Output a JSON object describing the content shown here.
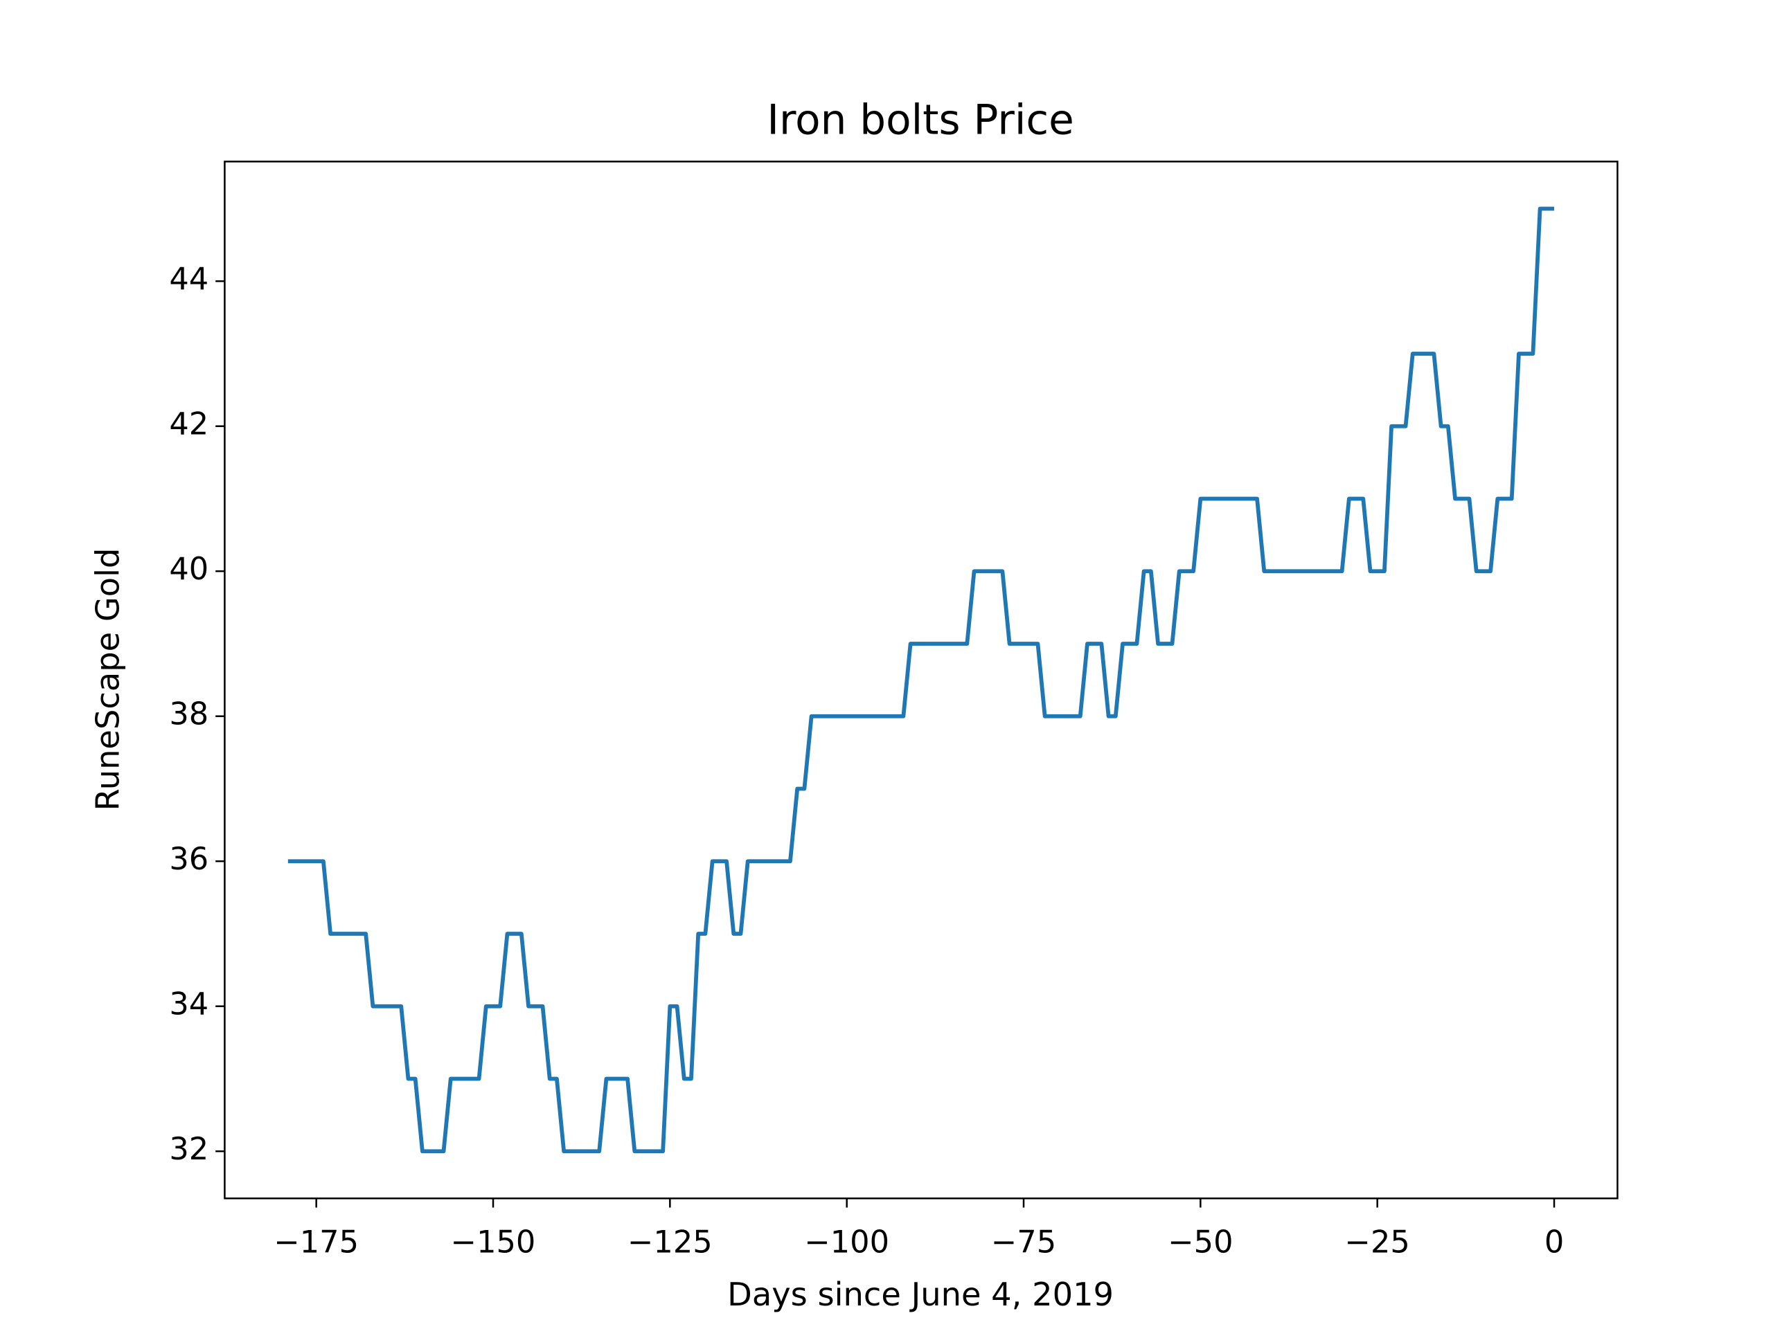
{
  "chart_data": {
    "type": "line",
    "title": "Iron bolts Price",
    "x_label": "Days since June 4, 2019",
    "y_label": "RuneScape Gold",
    "x": [
      -179,
      -178,
      -177,
      -176,
      -175,
      -174,
      -173,
      -172,
      -171,
      -170,
      -169,
      -168,
      -167,
      -166,
      -165,
      -164,
      -163,
      -162,
      -161,
      -160,
      -159,
      -158,
      -157,
      -156,
      -155,
      -154,
      -153,
      -152,
      -151,
      -150,
      -149,
      -148,
      -147,
      -146,
      -145,
      -144,
      -143,
      -142,
      -141,
      -140,
      -139,
      -138,
      -137,
      -136,
      -135,
      -134,
      -133,
      -132,
      -131,
      -130,
      -129,
      -128,
      -127,
      -126,
      -125,
      -124,
      -123,
      -122,
      -121,
      -120,
      -119,
      -118,
      -117,
      -116,
      -115,
      -114,
      -113,
      -112,
      -111,
      -110,
      -109,
      -108,
      -107,
      -106,
      -105,
      -104,
      -103,
      -102,
      -101,
      -100,
      -99,
      -98,
      -97,
      -96,
      -95,
      -94,
      -93,
      -92,
      -91,
      -90,
      -89,
      -88,
      -87,
      -86,
      -85,
      -84,
      -83,
      -82,
      -81,
      -80,
      -79,
      -78,
      -77,
      -76,
      -75,
      -74,
      -73,
      -72,
      -71,
      -70,
      -69,
      -68,
      -67,
      -66,
      -65,
      -64,
      -63,
      -62,
      -61,
      -60,
      -59,
      -58,
      -57,
      -56,
      -55,
      -54,
      -53,
      -52,
      -51,
      -50,
      -49,
      -48,
      -47,
      -46,
      -45,
      -44,
      -43,
      -42,
      -41,
      -40,
      -39,
      -38,
      -37,
      -36,
      -35,
      -34,
      -33,
      -32,
      -31,
      -30,
      -29,
      -28,
      -27,
      -26,
      -25,
      -24,
      -23,
      -22,
      -21,
      -20,
      -19,
      -18,
      -17,
      -16,
      -15,
      -14,
      -13,
      -12,
      -11,
      -10,
      -9,
      -8,
      -7,
      -6,
      -5,
      -4,
      -3,
      -2,
      -1,
      0
    ],
    "series": [
      {
        "name": "Iron bolts",
        "color": "#1f77b4",
        "values": [
          36,
          36,
          36,
          36,
          36,
          36,
          35,
          35,
          35,
          35,
          35,
          35,
          34,
          34,
          34,
          34,
          34,
          33,
          33,
          32,
          32,
          32,
          32,
          33,
          33,
          33,
          33,
          33,
          34,
          34,
          34,
          35,
          35,
          35,
          34,
          34,
          34,
          33,
          33,
          32,
          32,
          32,
          32,
          32,
          32,
          33,
          33,
          33,
          33,
          32,
          32,
          32,
          32,
          32,
          34,
          34,
          33,
          33,
          35,
          35,
          36,
          36,
          36,
          35,
          35,
          36,
          36,
          36,
          36,
          36,
          36,
          36,
          37,
          37,
          38,
          38,
          38,
          38,
          38,
          38,
          38,
          38,
          38,
          38,
          38,
          38,
          38,
          38,
          39,
          39,
          39,
          39,
          39,
          39,
          39,
          39,
          39,
          40,
          40,
          40,
          40,
          40,
          39,
          39,
          39,
          39,
          39,
          38,
          38,
          38,
          38,
          38,
          38,
          39,
          39,
          39,
          38,
          38,
          39,
          39,
          39,
          40,
          40,
          39,
          39,
          39,
          40,
          40,
          40,
          41,
          41,
          41,
          41,
          41,
          41,
          41,
          41,
          41,
          40,
          40,
          40,
          40,
          40,
          40,
          40,
          40,
          40,
          40,
          40,
          40,
          41,
          41,
          41,
          40,
          40,
          40,
          42,
          42,
          42,
          43,
          43,
          43,
          43,
          42,
          42,
          41,
          41,
          41,
          40,
          40,
          40,
          41,
          41,
          41,
          43,
          43,
          43,
          45,
          45,
          45
        ]
      }
    ],
    "xlim": [
      -187.95,
      8.95
    ],
    "ylim": [
      31.35,
      45.65
    ],
    "xticks": [
      {
        "value": -175,
        "label": "−175"
      },
      {
        "value": -150,
        "label": "−150"
      },
      {
        "value": -125,
        "label": "−125"
      },
      {
        "value": -100,
        "label": "−100"
      },
      {
        "value": -75,
        "label": "−75"
      },
      {
        "value": -50,
        "label": "−50"
      },
      {
        "value": -25,
        "label": "−25"
      },
      0
    ],
    "yticks": [
      32,
      34,
      36,
      38,
      40,
      42,
      44
    ]
  }
}
